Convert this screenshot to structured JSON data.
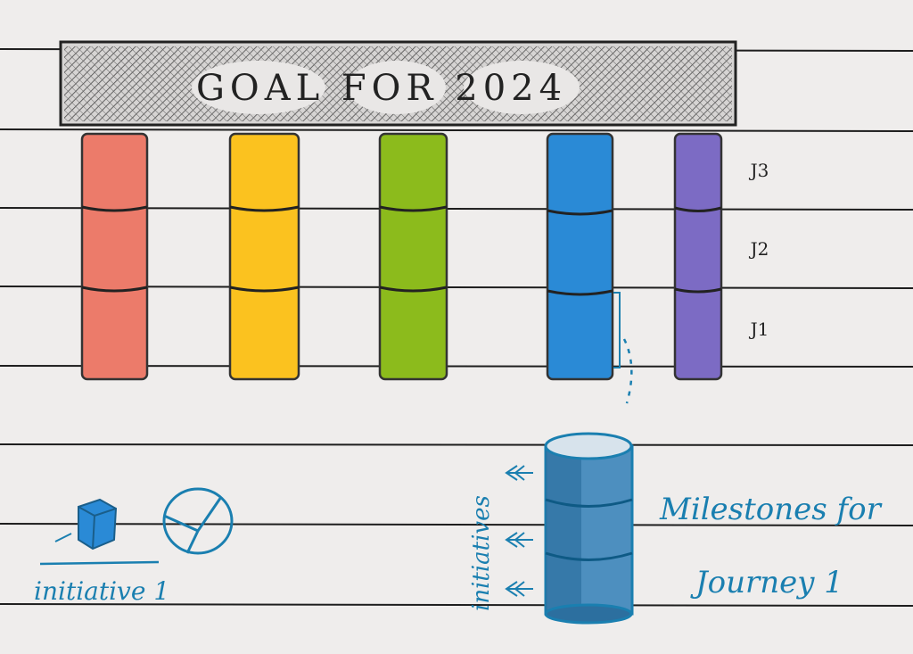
{
  "header": {
    "title": "GOAL FOR 2024"
  },
  "levels": [
    "J3",
    "J2",
    "J1"
  ],
  "legend": {
    "label": "initiative 1"
  },
  "detail": {
    "side_label": "initiatives",
    "caption_lines": [
      "Milestones for",
      "Journey 1"
    ]
  }
}
